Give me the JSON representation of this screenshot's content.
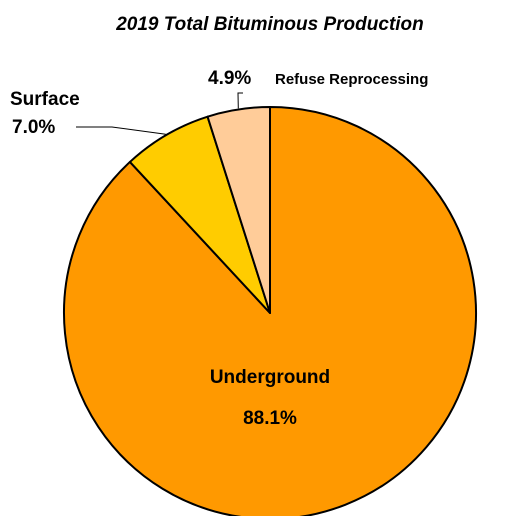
{
  "chart_data": {
    "type": "pie",
    "title": "2019 Total Bituminous Production",
    "slices": [
      {
        "name": "Underground",
        "value": 88.1,
        "label": "88.1%",
        "color": "#FF9900"
      },
      {
        "name": "Surface",
        "value": 7.0,
        "label": "7.0%",
        "color": "#FFCC00"
      },
      {
        "name": "Refuse Reprocessing",
        "value": 4.9,
        "label": "4.9%",
        "color": "#FFCC99"
      }
    ],
    "start_angle_deg": 0,
    "direction": "clockwise",
    "edge_color": "#000000"
  }
}
